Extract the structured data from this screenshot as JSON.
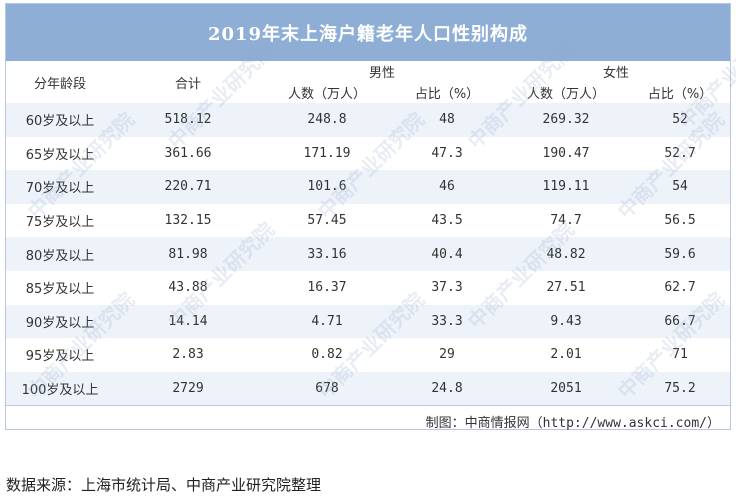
{
  "title": "2019年末上海户籍老年人口性别构成",
  "headers": {
    "age": "分年龄段",
    "total": "合计",
    "male": "男性",
    "female": "女性",
    "count": "人数（万人）",
    "ratio": "占比（%）"
  },
  "rows": [
    {
      "age": "60岁及以上",
      "total": "518.12",
      "m_count": "248.8",
      "m_ratio": "48",
      "f_count": "269.32",
      "f_ratio": "52"
    },
    {
      "age": "65岁及以上",
      "total": "361.66",
      "m_count": "171.19",
      "m_ratio": "47.3",
      "f_count": "190.47",
      "f_ratio": "52.7"
    },
    {
      "age": "70岁及以上",
      "total": "220.71",
      "m_count": "101.6",
      "m_ratio": "46",
      "f_count": "119.11",
      "f_ratio": "54"
    },
    {
      "age": "75岁及以上",
      "total": "132.15",
      "m_count": "57.45",
      "m_ratio": "43.5",
      "f_count": "74.7",
      "f_ratio": "56.5"
    },
    {
      "age": "80岁及以上",
      "total": "81.98",
      "m_count": "33.16",
      "m_ratio": "40.4",
      "f_count": "48.82",
      "f_ratio": "59.6"
    },
    {
      "age": "85岁及以上",
      "total": "43.88",
      "m_count": "16.37",
      "m_ratio": "37.3",
      "f_count": "27.51",
      "f_ratio": "62.7"
    },
    {
      "age": "90岁及以上",
      "total": "14.14",
      "m_count": "4.71",
      "m_ratio": "33.3",
      "f_count": "9.43",
      "f_ratio": "66.7"
    },
    {
      "age": "95岁及以上",
      "total": "2.83",
      "m_count": "0.82",
      "m_ratio": "29",
      "f_count": "2.01",
      "f_ratio": "71"
    },
    {
      "age": "100岁及以上",
      "total": "2729",
      "m_count": "678",
      "m_ratio": "24.8",
      "f_count": "2051",
      "f_ratio": "75.2"
    }
  ],
  "credit_prefix": "制图：中商情报网",
  "credit_url": "（http://www.askci.com/）",
  "source": "数据来源：上海市统计局、中商产业研究院整理",
  "watermark": "中商产业研究院",
  "colors": {
    "title_bg": "#8eaed6",
    "row_alt": "#eef3fa",
    "border": "#b9c7dd"
  }
}
